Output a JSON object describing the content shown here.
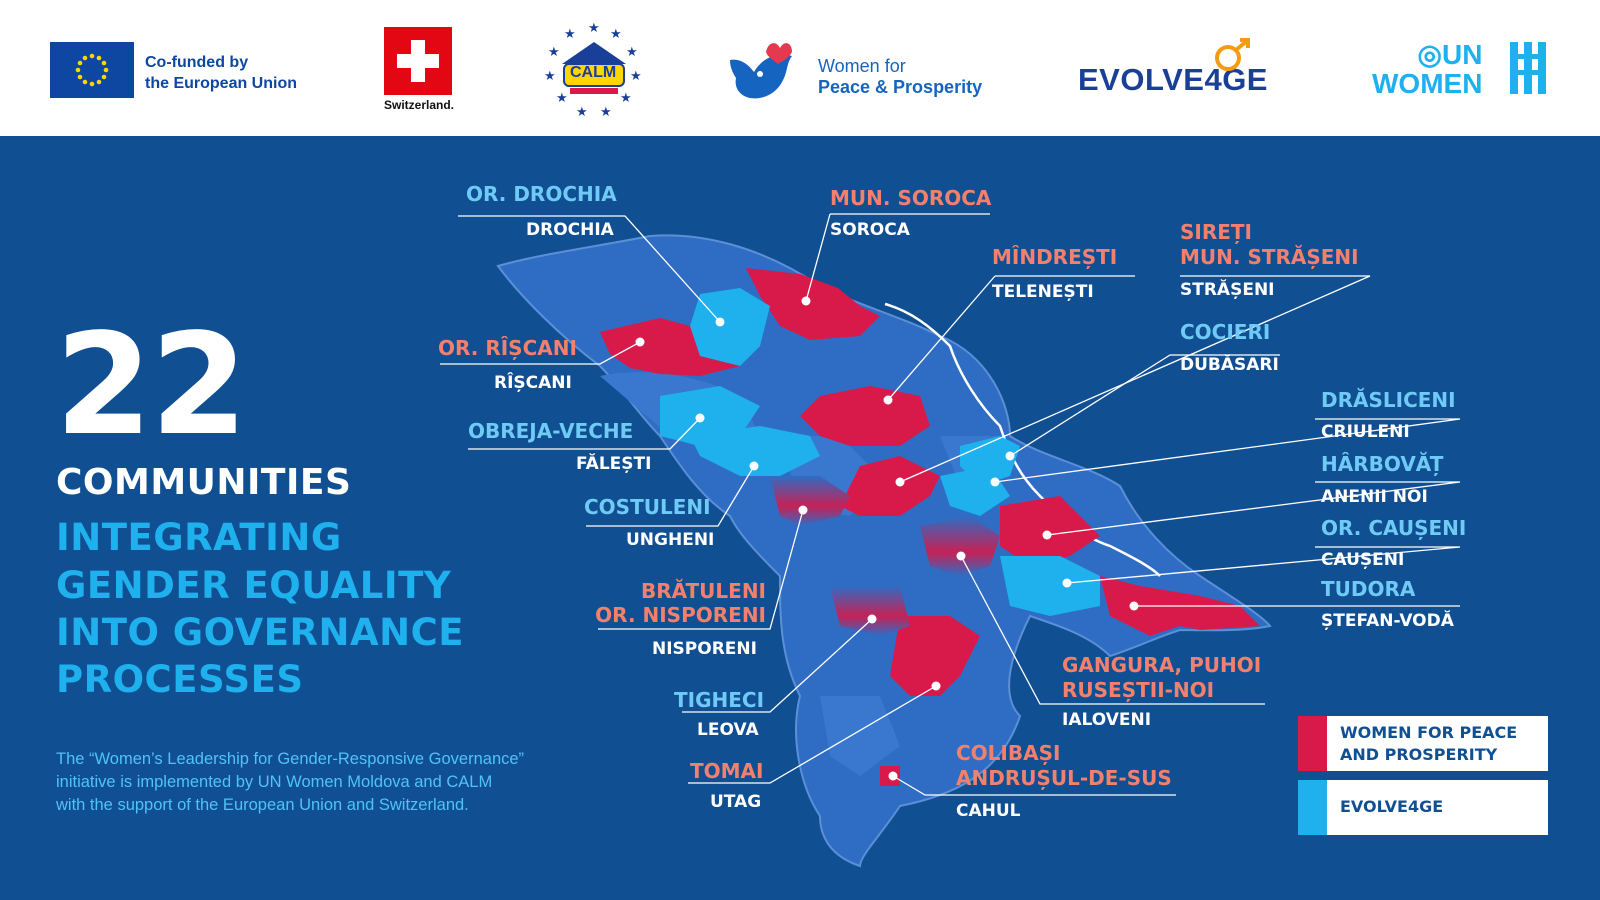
{
  "header": {
    "eu_line1": "Co-funded by",
    "eu_line2": "the European Union",
    "switzerland": "Switzerland.",
    "calm": "CALM",
    "wpp_line1": "Women for",
    "wpp_line2": "Peace & Prosperity",
    "evolve": "EVOLVE4GE",
    "unwomen_line1": "UN",
    "unwomen_line2": "WOMEN"
  },
  "headline": {
    "number": "22",
    "communities": "COMMUNITIES",
    "tagline_lines": [
      "INTEGRATING",
      "GENDER EQUALITY",
      "INTO GOVERNANCE",
      "PROCESSES"
    ]
  },
  "footnote": [
    "The “Women’s Leadership for Gender-Responsive Governance”",
    "initiative is implemented by UN Women Moldova and CALM",
    "with the support of the European Union and Switzerland."
  ],
  "labels": [
    {
      "community": "OR. DROCHIA",
      "district": "DROCHIA",
      "program": "evolve"
    },
    {
      "community": "MUN. SOROCA",
      "district": "SOROCA",
      "program": "wpp"
    },
    {
      "community": "MÎNDREȘTI",
      "district": "TELENEȘTI",
      "program": "wpp"
    },
    {
      "community": "SIREȚI\nMUN. STRĂȘENI",
      "district": "STRĂȘENI",
      "program": "wpp"
    },
    {
      "community": "OR. RÎȘCANI",
      "district": "RÎȘCANI",
      "program": "wpp"
    },
    {
      "community": "COCIERI",
      "district": "DUBĂSARI",
      "program": "evolve"
    },
    {
      "community": "OBREJA-VECHE",
      "district": "FĂLEȘTI",
      "program": "evolve"
    },
    {
      "community": "DRĂSLICENI",
      "district": "CRIULENI",
      "program": "evolve"
    },
    {
      "community": "HÂRBOVĂȚ",
      "district": "ANENII NOI",
      "program": "evolve"
    },
    {
      "community": "COSTULENI",
      "district": "UNGHENI",
      "program": "evolve"
    },
    {
      "community": "OR. CAUȘENI",
      "district": "CAUȘENI",
      "program": "evolve"
    },
    {
      "community": "TUDORA",
      "district": "ȘTEFAN-VODĂ",
      "program": "evolve"
    },
    {
      "community": "BRĂTULENI\nOR. NISPORENI",
      "district": "NISPORENI",
      "program": "mixed"
    },
    {
      "community": "GANGURA, PUHOI\nRUSEȘTII-NOI",
      "district": "IALOVENI",
      "program": "mixed"
    },
    {
      "community": "TIGHECI",
      "district": "LEOVA",
      "program": "evolve"
    },
    {
      "community": "TOMAI",
      "district": "UTAG",
      "program": "wpp"
    },
    {
      "community": "COLIBAȘI\nANDRUȘUL-DE-SUS",
      "district": "CAHUL",
      "program": "mixed"
    }
  ],
  "legend": [
    {
      "label_line1": "WOMEN FOR PEACE",
      "label_line2": "AND PROSPERITY",
      "color": "#d71a4a"
    },
    {
      "label_line1": "EVOLVE4GE",
      "label_line2": "",
      "color": "#1fb1ee"
    }
  ],
  "colors": {
    "background": "#114f93",
    "wpp_red": "#d71a4a",
    "evolve_cyan": "#1fb1ee",
    "region_blue": "#2f6cc4",
    "community_red_label": "#f3806d",
    "community_blue_label": "#6fcbf5"
  }
}
